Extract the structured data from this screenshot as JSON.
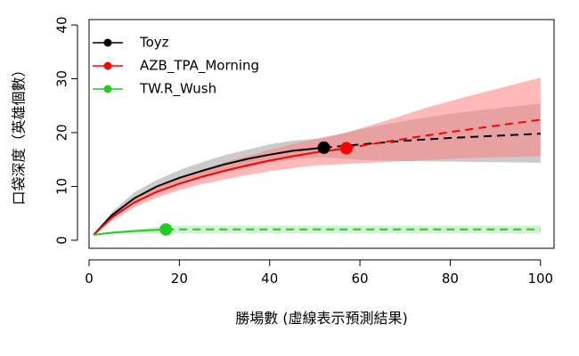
{
  "chart_data": {
    "type": "line",
    "xlabel": "勝場數 (虛線表示預測結果)",
    "ylabel": "口袋深度（英雄個數）",
    "xlim": [
      0,
      103
    ],
    "ylim": [
      -1.5,
      41
    ],
    "x_ticks": [
      "0",
      "20",
      "40",
      "60",
      "80",
      "100"
    ],
    "y_ticks": [
      "0",
      "10",
      "20",
      "30",
      "40"
    ],
    "x_tick_values": [
      0,
      20,
      40,
      60,
      80,
      100
    ],
    "y_tick_values": [
      0,
      10,
      20,
      30,
      40
    ],
    "legend_position": "top-left",
    "observed_line_style": "solid",
    "predicted_line_style": "dashed",
    "series": [
      {
        "name": "Toyz",
        "color": "#000000",
        "band_color": "#a0a0a0",
        "observed": {
          "x": [
            1,
            5,
            10,
            15,
            20,
            25,
            30,
            35,
            40,
            45,
            52
          ],
          "y": [
            1,
            4.6,
            7.8,
            10.0,
            11.6,
            12.9,
            14.1,
            15.1,
            15.9,
            16.6,
            17.2
          ]
        },
        "predicted": {
          "x": [
            52,
            60,
            70,
            80,
            90,
            100
          ],
          "y": [
            17.2,
            17.8,
            18.5,
            19.0,
            19.4,
            19.8
          ]
        },
        "band": {
          "x": [
            1,
            5,
            10,
            15,
            20,
            25,
            30,
            35,
            40,
            45,
            52,
            60,
            70,
            80,
            90,
            100
          ],
          "lower": [
            1,
            4.1,
            6.9,
            8.8,
            10.3,
            11.5,
            12.6,
            13.6,
            14.4,
            15.1,
            15.4,
            14.9,
            14.7,
            14.6,
            14.5,
            14.4
          ],
          "upper": [
            1,
            5.2,
            8.9,
            11.2,
            13.0,
            14.5,
            15.8,
            16.8,
            17.8,
            18.5,
            19.0,
            20.6,
            22.2,
            23.5,
            24.5,
            25.4
          ]
        },
        "endpoint": {
          "x": 52,
          "y": 17.2
        }
      },
      {
        "name": "AZB_TPA_Morning",
        "color": "#ff0000",
        "band_color": "#ff8080",
        "observed": {
          "x": [
            1,
            5,
            10,
            15,
            20,
            25,
            30,
            35,
            40,
            45,
            50,
            57
          ],
          "y": [
            1,
            4.2,
            7.0,
            9.0,
            10.5,
            11.8,
            12.9,
            13.9,
            14.8,
            15.6,
            16.3,
            17.1
          ]
        },
        "predicted": {
          "x": [
            57,
            65,
            75,
            85,
            100
          ],
          "y": [
            17.1,
            18.2,
            19.5,
            20.7,
            22.4
          ]
        },
        "band": {
          "x": [
            1,
            5,
            10,
            15,
            20,
            25,
            30,
            35,
            40,
            45,
            50,
            57,
            65,
            75,
            85,
            100
          ],
          "lower": [
            1,
            3.6,
            6.1,
            7.9,
            9.3,
            10.4,
            11.3,
            12.1,
            12.8,
            13.4,
            13.9,
            14.2,
            14.5,
            14.9,
            15.3,
            15.6
          ],
          "upper": [
            1,
            4.8,
            7.9,
            10.1,
            11.7,
            13.1,
            14.5,
            15.6,
            16.8,
            17.8,
            18.8,
            20.0,
            22.0,
            24.7,
            27.0,
            30.2
          ]
        },
        "endpoint": {
          "x": 57,
          "y": 17.1
        }
      },
      {
        "name": "TW.R_Wush",
        "color": "#22cc22",
        "band_color": "#a8e8a8",
        "observed": {
          "x": [
            1,
            5,
            10,
            17
          ],
          "y": [
            1,
            1.4,
            1.7,
            2.0
          ]
        },
        "predicted": {
          "x": [
            17,
            100
          ],
          "y": [
            2.0,
            2.0
          ]
        },
        "band": {
          "x": [
            1,
            5,
            10,
            17,
            100
          ],
          "lower": [
            1,
            1.2,
            1.4,
            1.3,
            1.3
          ],
          "upper": [
            1,
            1.6,
            2.0,
            2.7,
            2.7
          ]
        },
        "endpoint": {
          "x": 17,
          "y": 2.0
        }
      }
    ]
  }
}
